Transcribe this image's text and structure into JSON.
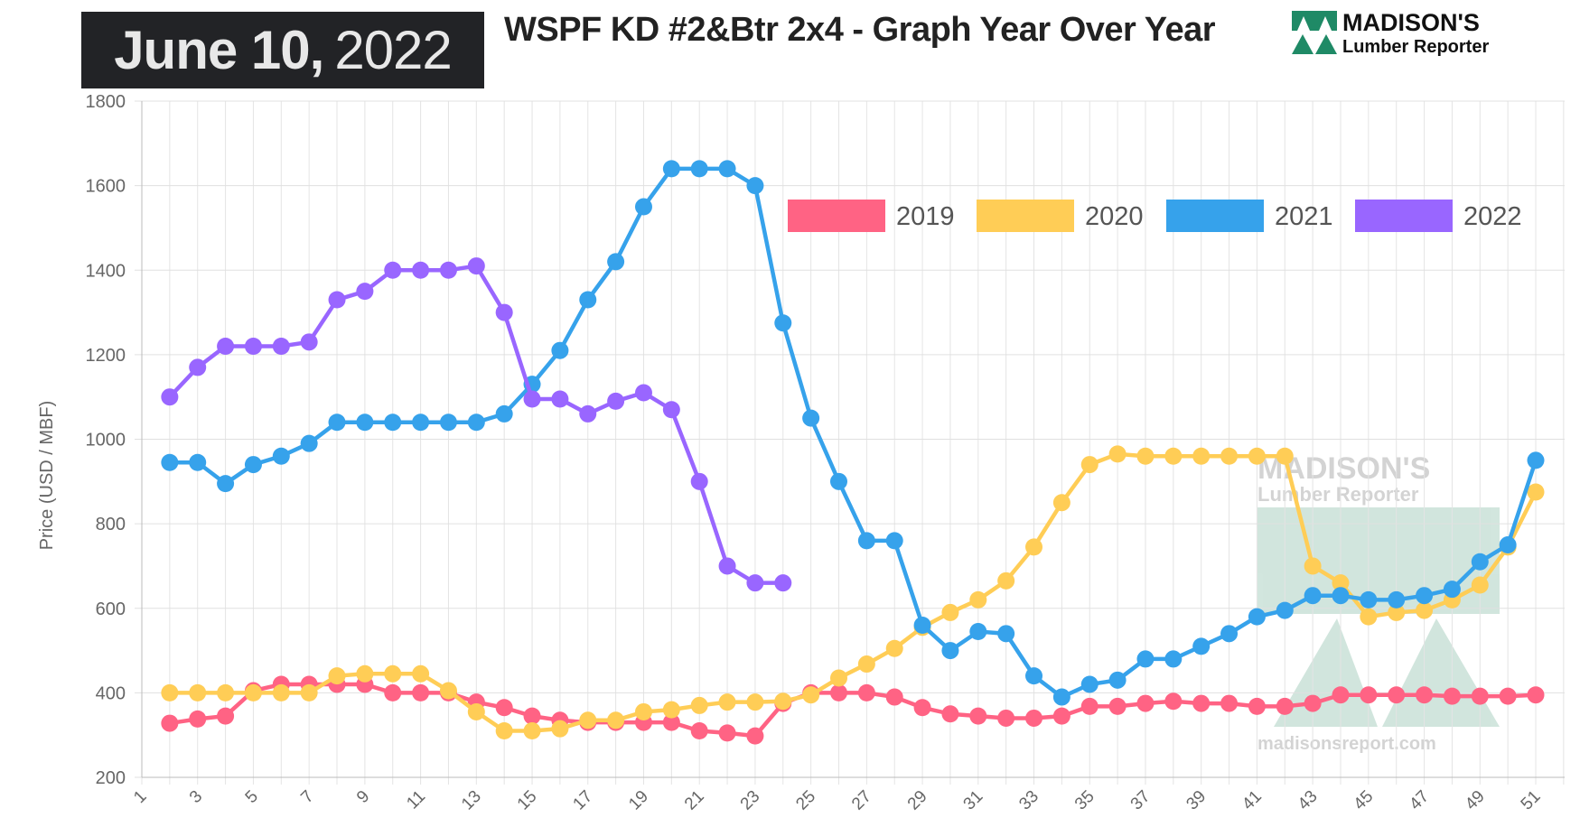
{
  "header": {
    "date_bold": "June 10,",
    "date_year": "2022",
    "title": "WSPF KD #2&Btr 2x4 - Graph Year Over Year",
    "logo_text": "MADISON'S Lumber Reporter",
    "watermark_text": "MADISON'S Lumber Reporter madisonsreport.com"
  },
  "chart_data": {
    "type": "line",
    "title": "WSPF KD #2&Btr 2x4 - Graph Year Over Year",
    "xlabel": "",
    "ylabel": "Price (USD / MBF)",
    "xlim": [
      1,
      52
    ],
    "ylim": [
      200,
      1800
    ],
    "yticks": [
      200,
      400,
      600,
      800,
      1000,
      1200,
      1400,
      1600,
      1800
    ],
    "xticks": [
      1,
      3,
      5,
      7,
      9,
      11,
      13,
      15,
      17,
      19,
      21,
      23,
      25,
      27,
      29,
      31,
      33,
      35,
      37,
      39,
      41,
      43,
      45,
      47,
      49,
      51
    ],
    "grid": true,
    "legend_position": "top-right",
    "series": [
      {
        "name": "2019",
        "color": "#ff6384",
        "x_start": 2,
        "values": [
          328,
          338,
          345,
          405,
          420,
          420,
          420,
          420,
          400,
          400,
          400,
          378,
          365,
          345,
          335,
          330,
          330,
          330,
          330,
          310,
          305,
          298,
          375,
          400,
          400,
          400,
          390,
          365,
          350,
          345,
          340,
          340,
          345,
          368,
          368,
          375,
          380,
          375,
          375,
          368,
          368,
          375,
          395,
          395,
          395,
          395,
          392,
          392,
          392,
          395
        ]
      },
      {
        "name": "2020",
        "color": "#ffcd56",
        "x_start": 2,
        "values": [
          400,
          400,
          400,
          400,
          400,
          400,
          440,
          445,
          445,
          445,
          405,
          355,
          310,
          310,
          315,
          335,
          335,
          355,
          360,
          370,
          378,
          378,
          380,
          395,
          435,
          468,
          505,
          555,
          590,
          620,
          665,
          745,
          850,
          940,
          965,
          960,
          960,
          960,
          960,
          960,
          960,
          700,
          660,
          580,
          590,
          595,
          620,
          655,
          745,
          875
        ]
      },
      {
        "name": "2021",
        "color": "#36a2eb",
        "x_start": 2,
        "values": [
          945,
          945,
          895,
          940,
          960,
          990,
          1040,
          1040,
          1040,
          1040,
          1040,
          1040,
          1060,
          1130,
          1210,
          1330,
          1420,
          1550,
          1640,
          1640,
          1640,
          1600,
          1275,
          1050,
          900,
          760,
          760,
          560,
          500,
          545,
          540,
          440,
          390,
          420,
          430,
          480,
          480,
          510,
          540,
          580,
          595,
          630,
          630,
          620,
          620,
          630,
          645,
          710,
          750,
          950
        ]
      },
      {
        "name": "2022",
        "color": "#9966ff",
        "x_start": 2,
        "values": [
          1100,
          1170,
          1220,
          1220,
          1220,
          1230,
          1330,
          1350,
          1400,
          1400,
          1400,
          1410,
          1300,
          1095,
          1095,
          1060,
          1090,
          1110,
          1070,
          900,
          700,
          660,
          660
        ]
      }
    ]
  }
}
